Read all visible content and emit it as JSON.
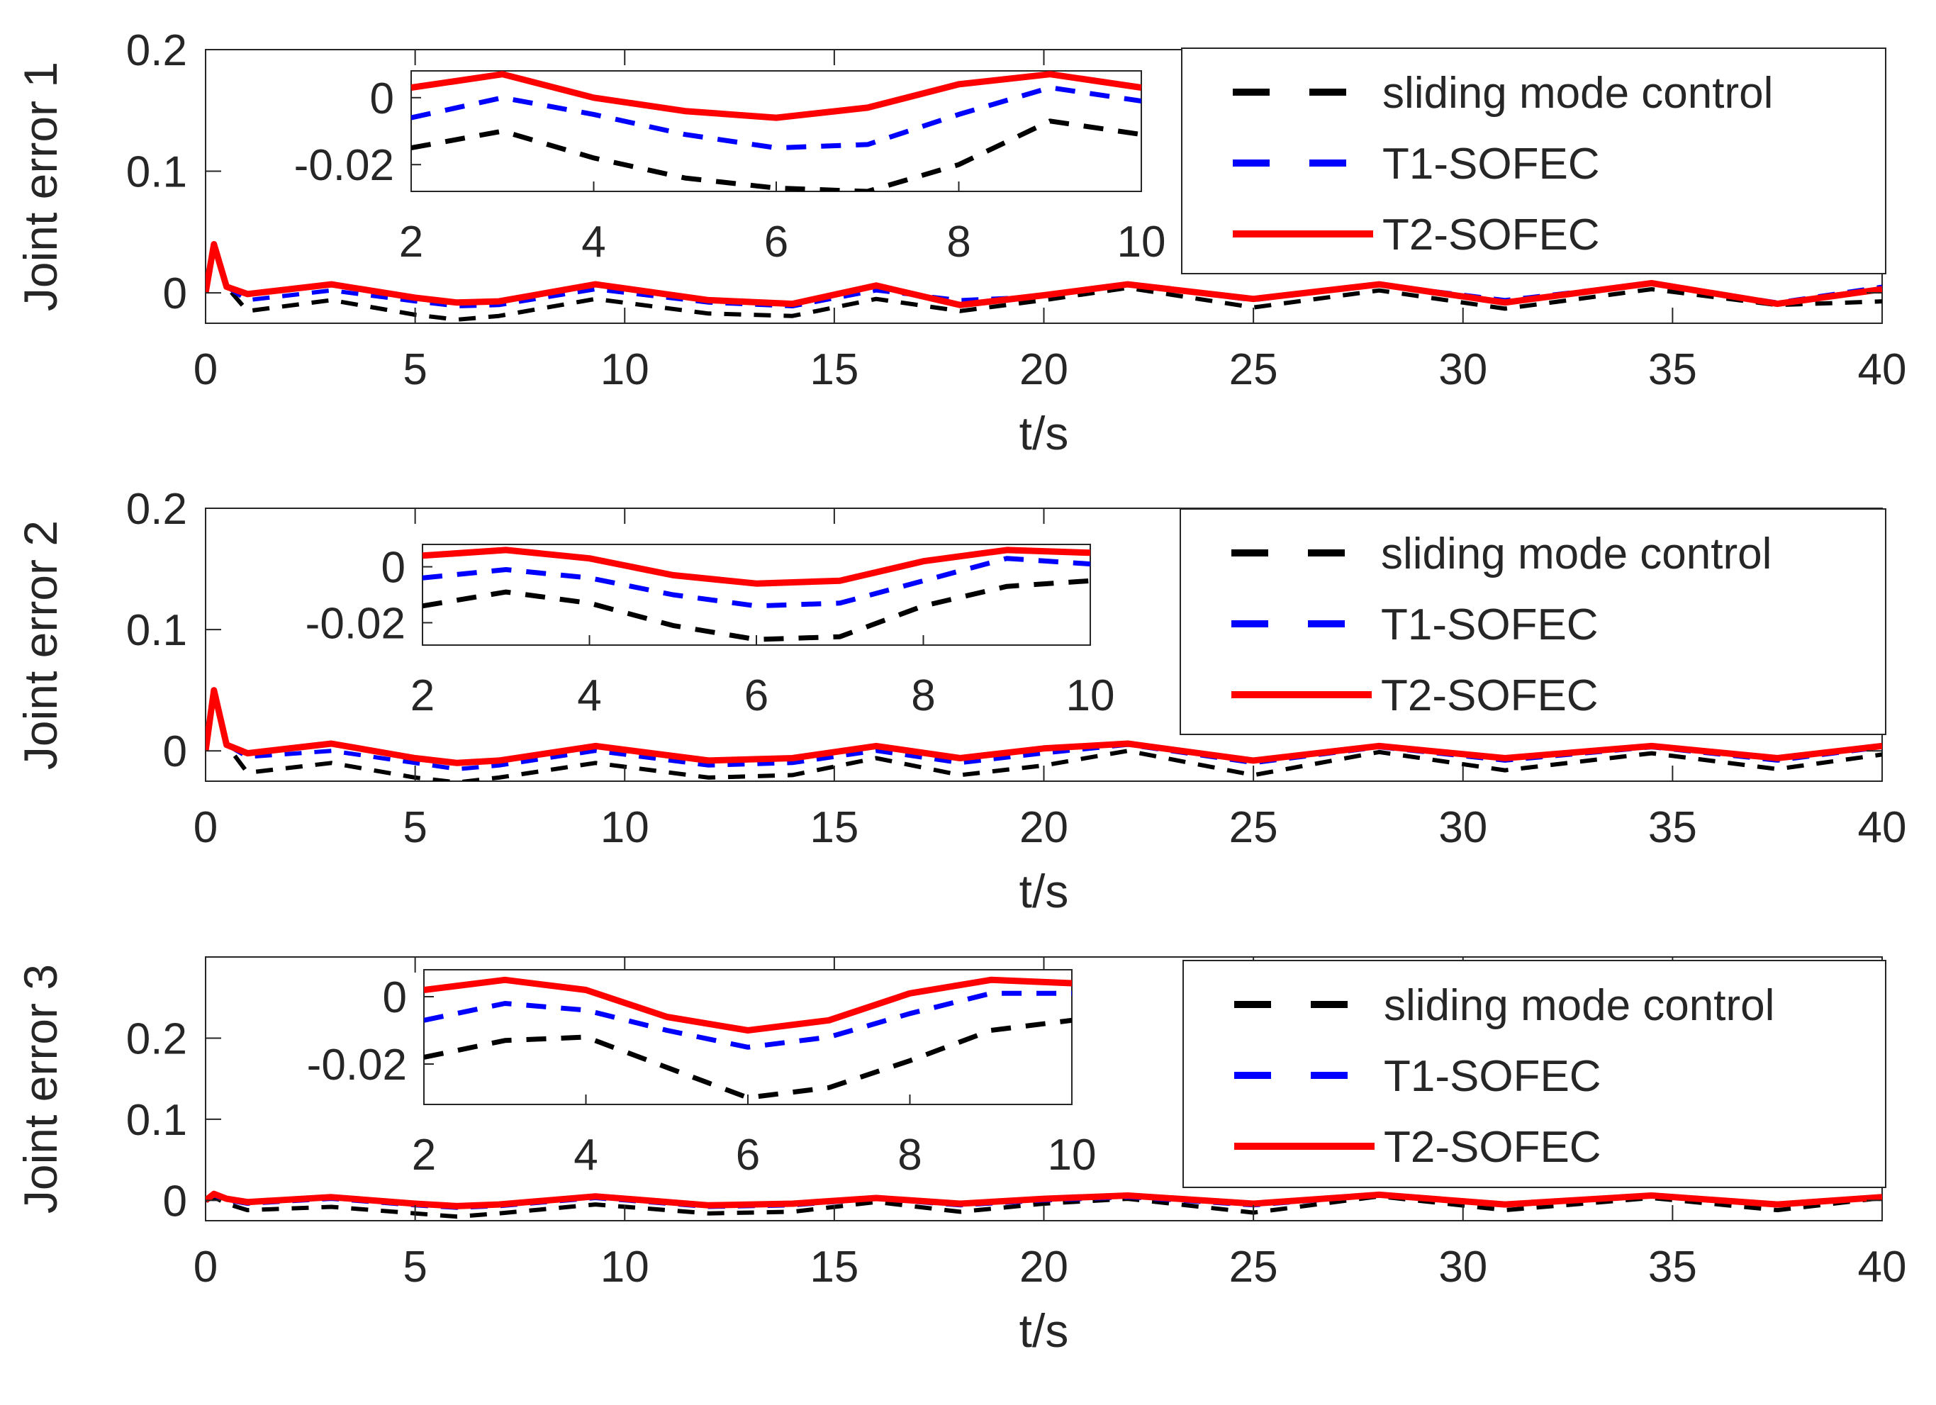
{
  "figure": {
    "xlabel": "t/s",
    "legend": [
      {
        "label": "sliding mode control",
        "color": "#000000",
        "style": "dashed"
      },
      {
        "label": "T1-SOFEC",
        "color": "#0000ff",
        "style": "dashed"
      },
      {
        "label": "T2-SOFEC",
        "color": "#ff0000",
        "style": "solid"
      }
    ]
  },
  "chart_data": [
    {
      "type": "line",
      "title": "",
      "ylabel": "Joint error 1",
      "xlabel": "t/s",
      "xlim": [
        0,
        40
      ],
      "ylim": [
        -0.025,
        0.2
      ],
      "xticks": [
        0,
        5,
        10,
        15,
        20,
        25,
        30,
        35,
        40
      ],
      "yticks": [
        0,
        0.1,
        0.2
      ],
      "ytick_labels": [
        "0",
        "0.1",
        "0.2"
      ],
      "x": [
        0,
        0.2,
        0.5,
        1,
        3,
        5,
        6,
        7,
        9.3,
        12,
        14,
        16,
        18,
        20,
        22,
        25,
        28,
        31,
        34.5,
        37.5,
        40
      ],
      "series": [
        {
          "name": "sliding mode control",
          "color": "#000000",
          "style": "dashed",
          "values": [
            0,
            0.035,
            0.005,
            -0.015,
            -0.006,
            -0.018,
            -0.022,
            -0.019,
            -0.005,
            -0.017,
            -0.019,
            -0.005,
            -0.015,
            -0.006,
            0.004,
            -0.012,
            0.002,
            -0.013,
            0.003,
            -0.01,
            -0.007
          ]
        },
        {
          "name": "T1-SOFEC",
          "color": "#0000ff",
          "style": "dashed",
          "values": [
            0,
            0.038,
            0.005,
            -0.006,
            0.002,
            -0.007,
            -0.011,
            -0.01,
            0.003,
            -0.008,
            -0.011,
            0.002,
            -0.006,
            -0.003,
            0.007,
            -0.006,
            0.007,
            -0.006,
            0.008,
            -0.008,
            0.005
          ]
        },
        {
          "name": "T2-SOFEC",
          "color": "#ff0000",
          "style": "solid",
          "values": [
            0,
            0.04,
            0.005,
            -0.001,
            0.007,
            -0.004,
            -0.008,
            -0.007,
            0.007,
            -0.006,
            -0.009,
            0.006,
            -0.01,
            -0.002,
            0.007,
            -0.005,
            0.007,
            -0.008,
            0.008,
            -0.009,
            0.003
          ]
        }
      ],
      "inset": {
        "xlim": [
          2,
          10
        ],
        "ylim": [
          -0.028,
          0.008
        ],
        "xticks": [
          2,
          4,
          6,
          8,
          10
        ],
        "yticks": [
          0,
          -0.02
        ],
        "ytick_labels": [
          "0",
          "-0.02"
        ],
        "x": [
          2,
          3,
          4,
          5,
          6,
          7,
          8,
          9,
          10
        ],
        "series": [
          {
            "name": "sliding mode control",
            "values": [
              -0.015,
              -0.01,
              -0.018,
              -0.024,
              -0.027,
              -0.028,
              -0.02,
              -0.007,
              -0.011
            ]
          },
          {
            "name": "T1-SOFEC",
            "values": [
              -0.006,
              0.0,
              -0.005,
              -0.011,
              -0.015,
              -0.014,
              -0.005,
              0.003,
              -0.001
            ]
          },
          {
            "name": "T2-SOFEC",
            "values": [
              0.003,
              0.007,
              0.0,
              -0.004,
              -0.006,
              -0.003,
              0.004,
              0.007,
              0.003
            ]
          }
        ]
      }
    },
    {
      "type": "line",
      "title": "",
      "ylabel": "Joint error 2",
      "xlabel": "t/s",
      "xlim": [
        0,
        40
      ],
      "ylim": [
        -0.025,
        0.2
      ],
      "xticks": [
        0,
        5,
        10,
        15,
        20,
        25,
        30,
        35,
        40
      ],
      "yticks": [
        0,
        0.1,
        0.2
      ],
      "ytick_labels": [
        "0",
        "0.1",
        "0.2"
      ],
      "x": [
        0,
        0.2,
        0.5,
        1,
        3,
        5,
        6,
        7,
        9.3,
        12,
        14,
        16,
        18,
        20,
        22,
        25,
        28,
        31,
        34.5,
        37.5,
        40
      ],
      "series": [
        {
          "name": "sliding mode control",
          "color": "#000000",
          "style": "dashed",
          "values": [
            0,
            0.045,
            0.005,
            -0.018,
            -0.01,
            -0.022,
            -0.026,
            -0.022,
            -0.01,
            -0.022,
            -0.02,
            -0.006,
            -0.02,
            -0.012,
            0.0,
            -0.02,
            -0.001,
            -0.016,
            -0.002,
            -0.015,
            -0.003
          ]
        },
        {
          "name": "T1-SOFEC",
          "color": "#0000ff",
          "style": "dashed",
          "values": [
            0,
            0.05,
            0.005,
            -0.005,
            0.0,
            -0.01,
            -0.015,
            -0.012,
            0.0,
            -0.012,
            -0.01,
            0.0,
            -0.01,
            -0.002,
            0.005,
            -0.01,
            0.003,
            -0.008,
            0.003,
            -0.008,
            0.003
          ]
        },
        {
          "name": "T2-SOFEC",
          "color": "#ff0000",
          "style": "solid",
          "values": [
            0,
            0.05,
            0.005,
            -0.002,
            0.006,
            -0.006,
            -0.01,
            -0.008,
            0.004,
            -0.008,
            -0.006,
            0.004,
            -0.006,
            0.002,
            0.006,
            -0.008,
            0.004,
            -0.006,
            0.004,
            -0.006,
            0.004
          ]
        }
      ],
      "inset": {
        "xlim": [
          2,
          10
        ],
        "ylim": [
          -0.028,
          0.008
        ],
        "xticks": [
          2,
          4,
          6,
          8,
          10
        ],
        "yticks": [
          0,
          -0.02
        ],
        "ytick_labels": [
          "0",
          "-0.02"
        ],
        "x": [
          2,
          3,
          4,
          5,
          6,
          7,
          8,
          9,
          10
        ],
        "series": [
          {
            "name": "sliding mode control",
            "values": [
              -0.014,
              -0.009,
              -0.013,
              -0.021,
              -0.026,
              -0.025,
              -0.014,
              -0.007,
              -0.005
            ]
          },
          {
            "name": "T1-SOFEC",
            "values": [
              -0.004,
              -0.001,
              -0.004,
              -0.01,
              -0.014,
              -0.013,
              -0.005,
              0.003,
              0.001
            ]
          },
          {
            "name": "T2-SOFEC",
            "values": [
              0.004,
              0.006,
              0.003,
              -0.003,
              -0.006,
              -0.005,
              0.002,
              0.006,
              0.005
            ]
          }
        ]
      }
    },
    {
      "type": "line",
      "title": "",
      "ylabel": "Joint error 3",
      "xlabel": "t/s",
      "xlim": [
        0,
        40
      ],
      "ylim": [
        -0.025,
        0.3
      ],
      "xticks": [
        0,
        5,
        10,
        15,
        20,
        25,
        30,
        35,
        40
      ],
      "yticks": [
        0,
        0.1,
        0.2
      ],
      "ytick_labels": [
        "0",
        "0.1",
        "0.2"
      ],
      "x": [
        0,
        0.2,
        0.5,
        1,
        3,
        5,
        6,
        7,
        9.3,
        12,
        14,
        16,
        18,
        20,
        22,
        25,
        28,
        31,
        34.5,
        37.5,
        40
      ],
      "series": [
        {
          "name": "sliding mode control",
          "color": "#000000",
          "style": "dashed",
          "values": [
            0,
            0.004,
            -0.004,
            -0.012,
            -0.008,
            -0.016,
            -0.02,
            -0.016,
            -0.005,
            -0.016,
            -0.014,
            -0.002,
            -0.014,
            -0.004,
            0.002,
            -0.015,
            0.005,
            -0.012,
            0.003,
            -0.012,
            0.003
          ]
        },
        {
          "name": "T1-SOFEC",
          "color": "#0000ff",
          "style": "dashed",
          "values": [
            0,
            0.006,
            0.0,
            -0.004,
            0.002,
            -0.006,
            -0.009,
            -0.007,
            0.003,
            -0.008,
            -0.006,
            0.002,
            -0.006,
            0.0,
            0.004,
            -0.006,
            0.006,
            -0.006,
            0.005,
            -0.006,
            0.004
          ]
        },
        {
          "name": "T2-SOFEC",
          "color": "#ff0000",
          "style": "solid",
          "values": [
            0,
            0.008,
            0.002,
            -0.002,
            0.004,
            -0.004,
            -0.007,
            -0.005,
            0.005,
            -0.006,
            -0.004,
            0.003,
            -0.004,
            0.002,
            0.006,
            -0.004,
            0.007,
            -0.005,
            0.006,
            -0.005,
            0.004
          ]
        }
      ],
      "inset": {
        "xlim": [
          2,
          10
        ],
        "ylim": [
          -0.032,
          0.008
        ],
        "xticks": [
          2,
          4,
          6,
          8,
          10
        ],
        "yticks": [
          0,
          -0.02
        ],
        "ytick_labels": [
          "0",
          "-0.02"
        ],
        "x": [
          2,
          3,
          4,
          5,
          6,
          7,
          8,
          9,
          10
        ],
        "series": [
          {
            "name": "sliding mode control",
            "values": [
              -0.018,
              -0.013,
              -0.012,
              -0.021,
              -0.03,
              -0.027,
              -0.019,
              -0.01,
              -0.007
            ]
          },
          {
            "name": "T1-SOFEC",
            "values": [
              -0.007,
              -0.002,
              -0.004,
              -0.01,
              -0.015,
              -0.012,
              -0.005,
              0.001,
              0.001
            ]
          },
          {
            "name": "T2-SOFEC",
            "values": [
              0.002,
              0.005,
              0.002,
              -0.006,
              -0.01,
              -0.007,
              0.001,
              0.005,
              0.004
            ]
          }
        ]
      }
    }
  ]
}
